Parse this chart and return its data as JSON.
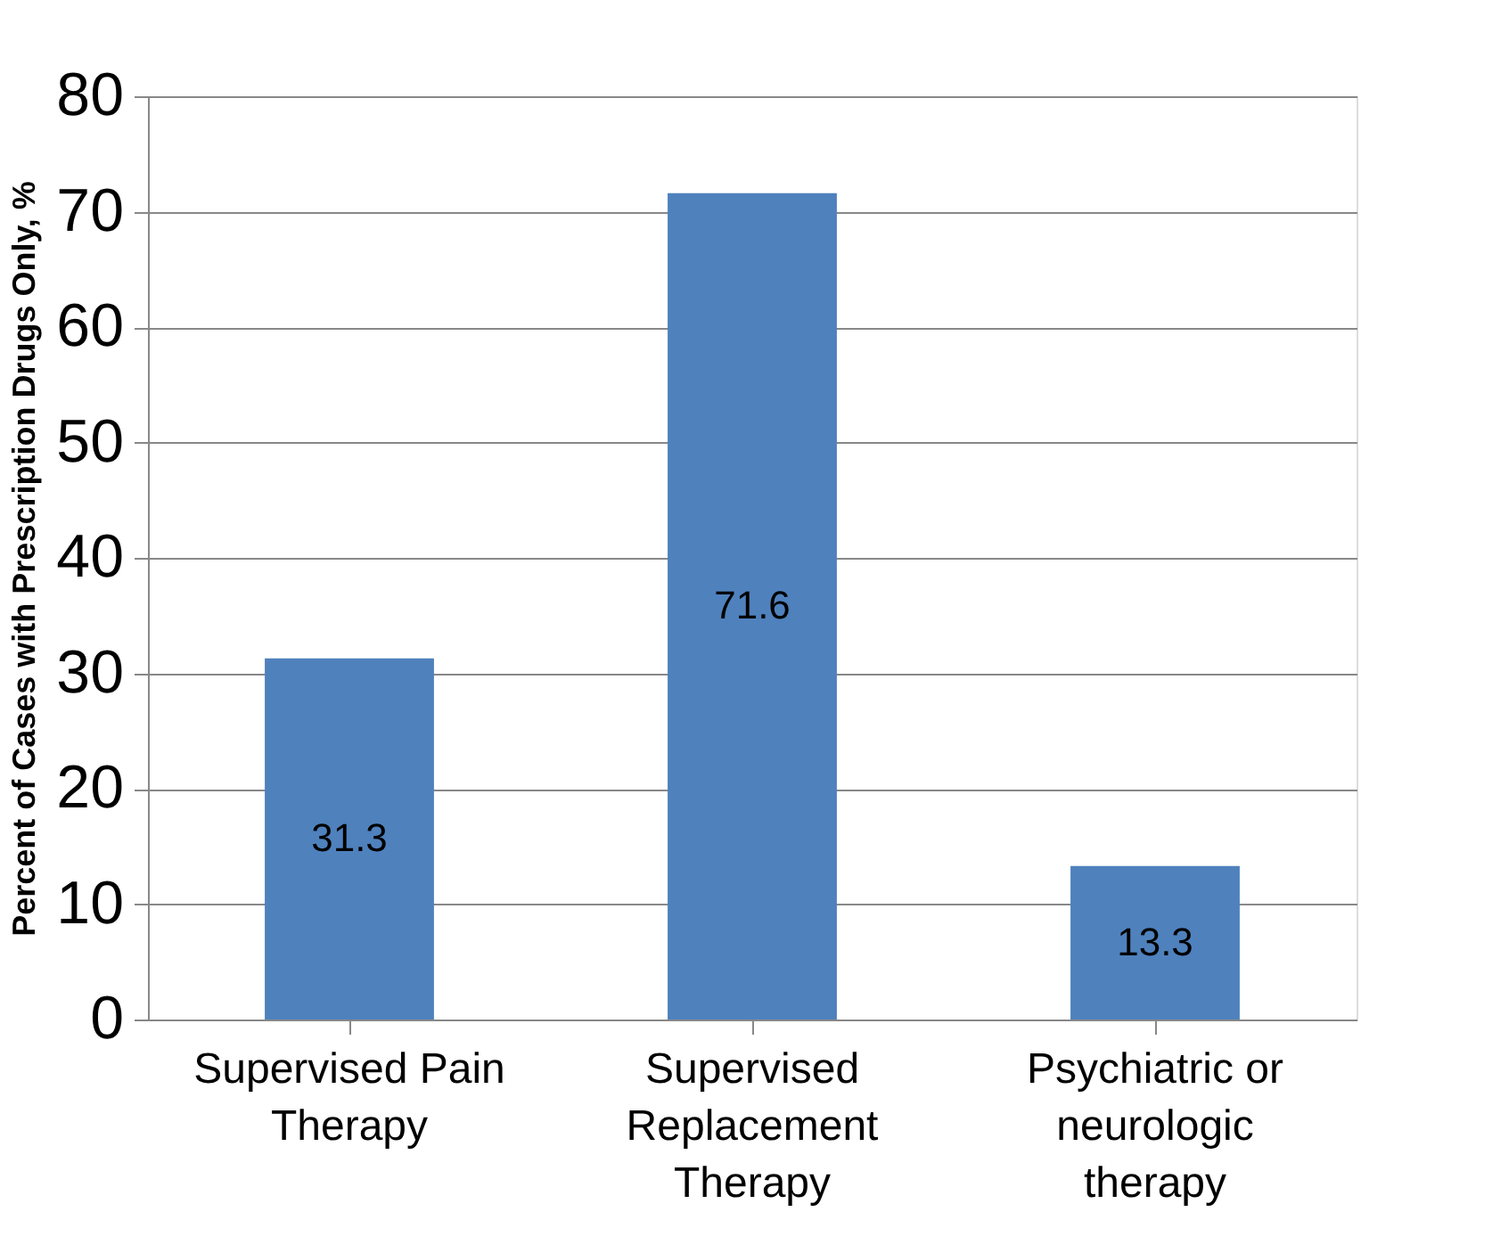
{
  "chart_data": {
    "type": "bar",
    "ylabel": "Percent of Cases with Prescription Drugs Only, %",
    "categories": [
      "Supervised Pain\nTherapy",
      "Supervised\nReplacement\nTherapy",
      "Psychiatric or\nneurologic\ntherapy"
    ],
    "values": [
      31.3,
      71.6,
      13.3
    ],
    "color": "#4f81bd",
    "data_labels": true,
    "ylim": [
      0,
      80
    ],
    "yticks": [
      0,
      10,
      20,
      30,
      40,
      50,
      60,
      70,
      80
    ],
    "grid": "y"
  }
}
